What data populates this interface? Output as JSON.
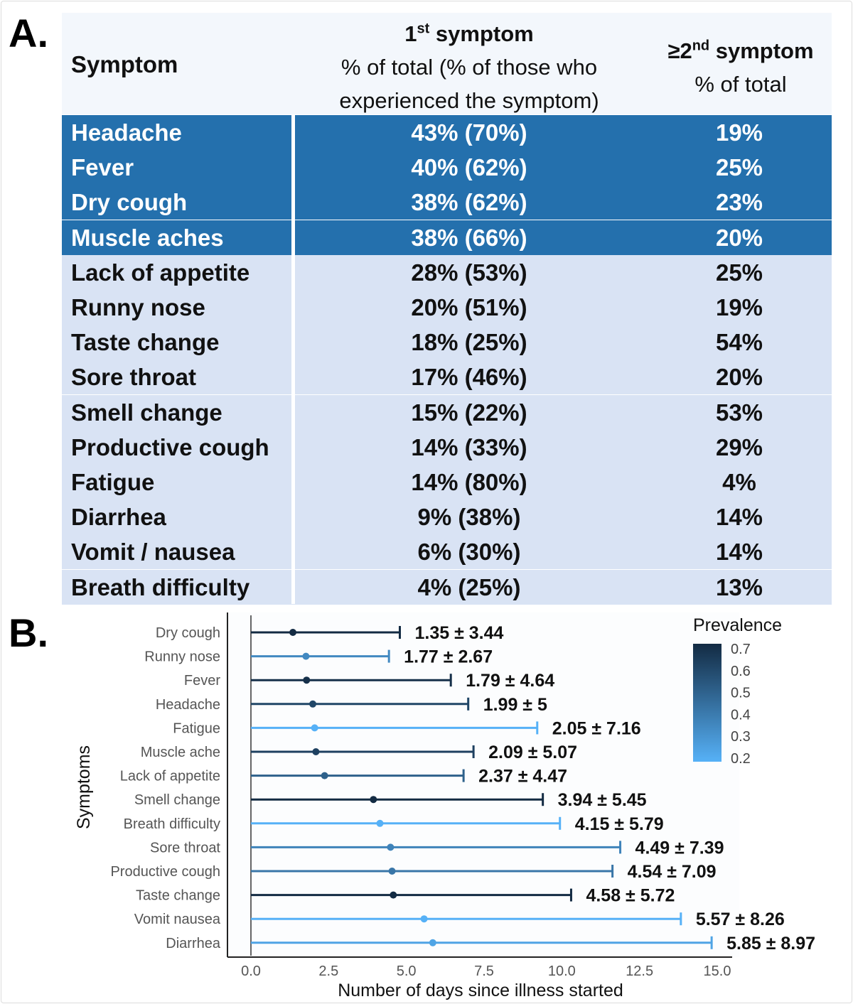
{
  "panel_a": {
    "label": "A.",
    "headers": {
      "symptom": "Symptom",
      "first_title_num": "1",
      "first_title_sup": "st",
      "first_title_rest": " symptom",
      "first_sub1": "% of total (% of those who",
      "first_sub2": "experienced the symptom)",
      "second_title_pre": "≥2",
      "second_title_sup": "nd",
      "second_title_rest": " symptom",
      "second_sub": "% of total"
    },
    "highlight_color": "#2470ad",
    "rows": [
      {
        "symptom": "Headache",
        "first": "43% (70%)",
        "second": "19%",
        "highlight": true
      },
      {
        "symptom": "Fever",
        "first": "40% (62%)",
        "second": "25%",
        "highlight": true
      },
      {
        "symptom": "Dry cough",
        "first": "38% (62%)",
        "second": "23%",
        "highlight": true
      },
      {
        "symptom": "Muscle aches",
        "first": "38% (66%)",
        "second": "20%",
        "highlight": true
      },
      {
        "symptom": "Lack of appetite",
        "first": "28% (53%)",
        "second": "25%",
        "highlight": false
      },
      {
        "symptom": "Runny nose",
        "first": "20% (51%)",
        "second": "19%",
        "highlight": false
      },
      {
        "symptom": "Taste change",
        "first": "18% (25%)",
        "second": "54%",
        "highlight": false
      },
      {
        "symptom": "Sore throat",
        "first": "17% (46%)",
        "second": "20%",
        "highlight": false
      },
      {
        "symptom": "Smell change",
        "first": "15% (22%)",
        "second": "53%",
        "highlight": false
      },
      {
        "symptom": "Productive cough",
        "first": "14% (33%)",
        "second": "29%",
        "highlight": false
      },
      {
        "symptom": "Fatigue",
        "first": "14% (80%)",
        "second": "4%",
        "highlight": false
      },
      {
        "symptom": "Diarrhea",
        "first": "9% (38%)",
        "second": "14%",
        "highlight": false
      },
      {
        "symptom": "Vomit / nausea",
        "first": "6% (30%)",
        "second": "14%",
        "highlight": false
      },
      {
        "symptom": "Breath difficulty",
        "first": "4% (25%)",
        "second": "13%",
        "highlight": false
      }
    ]
  },
  "chart_data": {
    "panel_label": "B.",
    "type": "errorbar-dot",
    "xlabel": "Number of days since illness started",
    "ylabel": "Symptoms",
    "xlim": [
      0,
      15
    ],
    "xticks": [
      "0.0",
      "2.5",
      "5.0",
      "7.5",
      "10.0",
      "12.5",
      "15.0"
    ],
    "grid": false,
    "legend": {
      "title": "Prevalence",
      "position": "top-right",
      "ticks": [
        "0.7",
        "0.6",
        "0.5",
        "0.4",
        "0.3",
        "0.2"
      ],
      "range": [
        0.2,
        0.7
      ],
      "color_low": "#56B1F7",
      "color_high": "#132B43"
    },
    "points": [
      {
        "symptom": "Dry cough",
        "mean": 1.35,
        "sd": 3.44,
        "label": "1.35 ± 3.44",
        "prevalence": 0.7
      },
      {
        "symptom": "Runny nose",
        "mean": 1.77,
        "sd": 2.67,
        "label": "1.77 ± 2.67",
        "prevalence": 0.35
      },
      {
        "symptom": "Fever",
        "mean": 1.79,
        "sd": 4.64,
        "label": "1.79 ± 4.64",
        "prevalence": 0.68
      },
      {
        "symptom": "Headache",
        "mean": 1.99,
        "sd": 5,
        "label": "1.99 ± 5",
        "prevalence": 0.6
      },
      {
        "symptom": "Fatigue",
        "mean": 2.05,
        "sd": 7.16,
        "label": "2.05 ± 7.16",
        "prevalence": 0.2
      },
      {
        "symptom": "Muscle ache",
        "mean": 2.09,
        "sd": 5.07,
        "label": "2.09 ± 5.07",
        "prevalence": 0.62
      },
      {
        "symptom": "Lack of appetite",
        "mean": 2.37,
        "sd": 4.47,
        "label": "2.37 ± 4.47",
        "prevalence": 0.5
      },
      {
        "symptom": "Smell change",
        "mean": 3.94,
        "sd": 5.45,
        "label": "3.94 ± 5.45",
        "prevalence": 0.7
      },
      {
        "symptom": "Breath difficulty",
        "mean": 4.15,
        "sd": 5.79,
        "label": "4.15 ± 5.79",
        "prevalence": 0.2
      },
      {
        "symptom": "Sore throat",
        "mean": 4.49,
        "sd": 7.39,
        "label": "4.49 ± 7.39",
        "prevalence": 0.37
      },
      {
        "symptom": "Productive cough",
        "mean": 4.54,
        "sd": 7.09,
        "label": "4.54 ± 7.09",
        "prevalence": 0.42
      },
      {
        "symptom": "Taste change",
        "mean": 4.58,
        "sd": 5.72,
        "label": "4.58 ± 5.72",
        "prevalence": 0.7
      },
      {
        "symptom": "Vomit nausea",
        "mean": 5.57,
        "sd": 8.26,
        "label": "5.57 ± 8.26",
        "prevalence": 0.2
      },
      {
        "symptom": "Diarrhea",
        "mean": 5.85,
        "sd": 8.97,
        "label": "5.85 ± 8.97",
        "prevalence": 0.25
      }
    ]
  }
}
